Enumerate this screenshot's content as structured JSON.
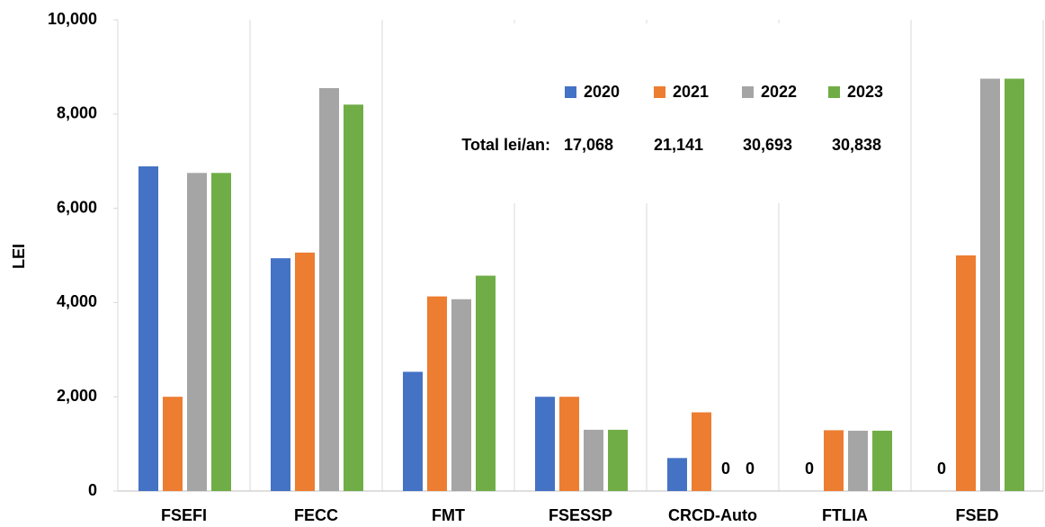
{
  "chart_data": {
    "type": "bar",
    "y_label": "LEI",
    "categories": [
      "FSEFI",
      "FECC",
      "FMT",
      "FSESSP",
      "CRCD-Auto",
      "FTLIA",
      "FSED"
    ],
    "series": [
      {
        "name": "2020",
        "color": "#4472c4",
        "values": [
          6890,
          4940,
          2530,
          2000,
          700,
          0,
          0
        ]
      },
      {
        "name": "2021",
        "color": "#ed7d31",
        "values": [
          2000,
          5060,
          4130,
          2000,
          1670,
          1290,
          5000
        ]
      },
      {
        "name": "2022",
        "color": "#a5a5a5",
        "values": [
          6750,
          8550,
          4070,
          1300,
          0,
          1280,
          8750
        ]
      },
      {
        "name": "2023",
        "color": "#70ad47",
        "values": [
          6750,
          8200,
          4570,
          1300,
          0,
          1280,
          8750
        ]
      }
    ],
    "ylim": [
      0,
      10000
    ],
    "yticks": [
      0,
      {
        "value": 2000,
        "label": "2,000"
      },
      {
        "value": 4000,
        "label": "4,000"
      },
      {
        "value": 6000,
        "label": "6,000"
      },
      {
        "value": 8000,
        "label": "8,000"
      },
      {
        "value": 10000,
        "label": "10,000"
      }
    ],
    "grid": false,
    "annotation": {
      "label": "Total lei/an:",
      "totals": [
        {
          "value": 17068,
          "label": "17,068"
        },
        {
          "value": 21141,
          "label": "21,141"
        },
        {
          "value": 30693,
          "label": "30,693"
        },
        {
          "value": 30838,
          "label": "30,838"
        }
      ]
    }
  }
}
